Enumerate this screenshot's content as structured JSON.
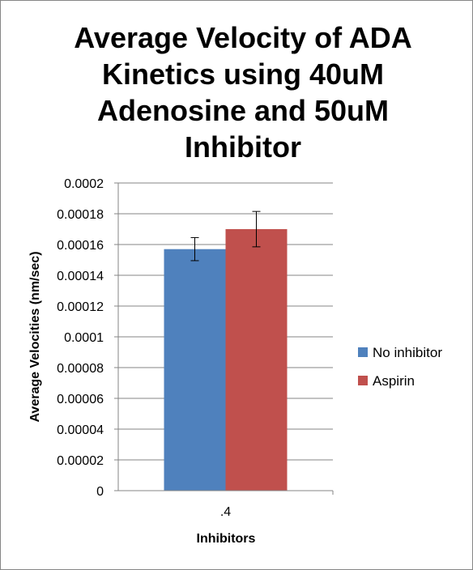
{
  "chart_data": {
    "type": "bar",
    "title": "Average Velocity of ADA Kinetics using 40uM Adenosine and 50uM Inhibitor",
    "categories": [
      ".4"
    ],
    "series": [
      {
        "name": "No inhibitor",
        "values": [
          0.000157
        ],
        "error": [
          7.5e-06
        ],
        "color": "#4f81bd"
      },
      {
        "name": "Aspirin",
        "values": [
          0.00017
        ],
        "error": [
          1.15e-05
        ],
        "color": "#c0504d"
      }
    ],
    "xlabel": "Inhibitors",
    "ylabel": "Average Velocities (nm/sec)",
    "ylim": [
      0,
      0.0002
    ],
    "yticks": [
      "0",
      "0.00002",
      "0.00004",
      "0.00006",
      "0.00008",
      "0.0001",
      "0.00012",
      "0.00014",
      "0.00016",
      "0.00018",
      "0.0002"
    ],
    "grid": true,
    "legend": "right"
  }
}
